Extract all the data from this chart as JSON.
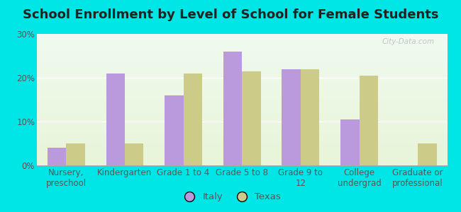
{
  "title": "School Enrollment by Level of School for Female Students",
  "categories": [
    "Nursery,\npreschool",
    "Kindergarten",
    "Grade 1 to 4",
    "Grade 5 to 8",
    "Grade 9 to\n12",
    "College\nundergrad",
    "Graduate or\nprofessional"
  ],
  "italy_values": [
    4,
    21,
    16,
    26,
    22,
    10.5,
    0
  ],
  "texas_values": [
    5,
    5,
    21,
    21.5,
    22,
    20.5,
    5
  ],
  "italy_color": "#bb99dd",
  "texas_color": "#cccc88",
  "background_outer": "#00e5e5",
  "background_inner": "#e8f5e8",
  "ylim": [
    0,
    30
  ],
  "yticks": [
    0,
    10,
    20,
    30
  ],
  "ytick_labels": [
    "0%",
    "10%",
    "20%",
    "30%"
  ],
  "bar_width": 0.32,
  "legend_italy": "Italy",
  "legend_texas": "Texas",
  "title_fontsize": 13,
  "tick_fontsize": 8.5,
  "legend_fontsize": 9.5,
  "watermark": "City-Data.com"
}
